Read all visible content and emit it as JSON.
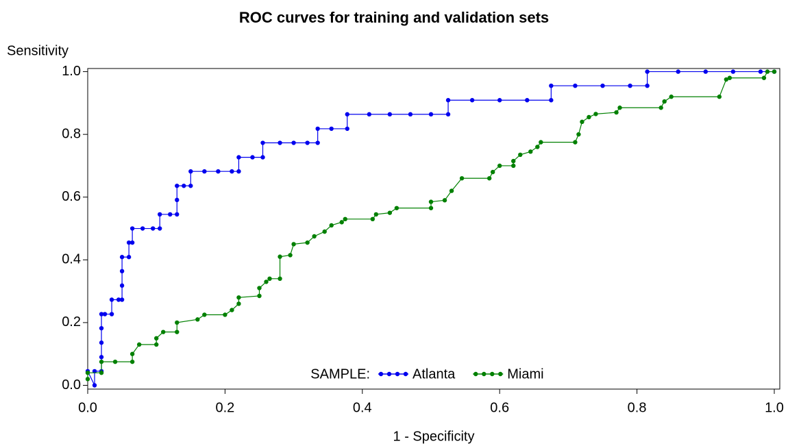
{
  "chart_data": {
    "type": "line",
    "title": "ROC curves for training and validation sets",
    "x_label": "1 - Specificity",
    "y_label": "Sensitivity",
    "legend_title": "SAMPLE:",
    "xlim": [
      0,
      1.008
    ],
    "ylim": [
      -0.012,
      1.01
    ],
    "xticks": [
      {
        "value": 0,
        "label": "0.0"
      },
      {
        "value": 0.2,
        "label": "0.2"
      },
      {
        "value": 0.4,
        "label": "0.4"
      },
      {
        "value": 0.6,
        "label": "0.6"
      },
      {
        "value": 0.8,
        "label": "0.8"
      },
      {
        "value": 1,
        "label": "1.0"
      }
    ],
    "yticks": [
      {
        "value": 0,
        "label": "0.0"
      },
      {
        "value": 0.2,
        "label": "0.2"
      },
      {
        "value": 0.4,
        "label": "0.4"
      },
      {
        "value": 0.6,
        "label": "0.6"
      },
      {
        "value": 0.8,
        "label": "0.8"
      },
      {
        "value": 1,
        "label": "1.0"
      }
    ],
    "series": [
      {
        "name": "Atlanta",
        "color": "#0000ee",
        "x": [
          0,
          0.01,
          0.01,
          0.02,
          0.02,
          0.02,
          0.02,
          0.02,
          0.025,
          0.035,
          0.035,
          0.045,
          0.05,
          0.05,
          0.05,
          0.05,
          0.06,
          0.06,
          0.065,
          0.065,
          0.08,
          0.095,
          0.105,
          0.105,
          0.12,
          0.13,
          0.13,
          0.13,
          0.14,
          0.15,
          0.15,
          0.17,
          0.19,
          0.21,
          0.22,
          0.22,
          0.24,
          0.255,
          0.255,
          0.28,
          0.3,
          0.32,
          0.335,
          0.335,
          0.355,
          0.378,
          0.378,
          0.41,
          0.44,
          0.47,
          0.5,
          0.525,
          0.525,
          0.56,
          0.6,
          0.64,
          0.675,
          0.675,
          0.71,
          0.75,
          0.79,
          0.815,
          0.815,
          0.86,
          0.9,
          0.94,
          0.98,
          1.0
        ],
        "values": [
          0.045,
          0.0,
          0.045,
          0.045,
          0.09,
          0.136,
          0.182,
          0.227,
          0.227,
          0.227,
          0.273,
          0.273,
          0.273,
          0.318,
          0.364,
          0.409,
          0.409,
          0.455,
          0.455,
          0.5,
          0.5,
          0.5,
          0.5,
          0.545,
          0.545,
          0.545,
          0.591,
          0.636,
          0.636,
          0.636,
          0.682,
          0.682,
          0.682,
          0.682,
          0.682,
          0.727,
          0.727,
          0.727,
          0.773,
          0.773,
          0.773,
          0.773,
          0.773,
          0.818,
          0.818,
          0.818,
          0.864,
          0.864,
          0.864,
          0.864,
          0.864,
          0.864,
          0.909,
          0.909,
          0.909,
          0.909,
          0.909,
          0.955,
          0.955,
          0.955,
          0.955,
          0.955,
          1.0,
          1.0,
          1.0,
          1.0,
          1.0,
          1.0
        ]
      },
      {
        "name": "Miami",
        "color": "#008000",
        "x": [
          0,
          0,
          0.02,
          0.02,
          0.04,
          0.065,
          0.065,
          0.075,
          0.1,
          0.1,
          0.11,
          0.13,
          0.13,
          0.16,
          0.17,
          0.2,
          0.21,
          0.22,
          0.22,
          0.25,
          0.25,
          0.26,
          0.265,
          0.28,
          0.28,
          0.295,
          0.3,
          0.32,
          0.33,
          0.345,
          0.355,
          0.37,
          0.375,
          0.415,
          0.42,
          0.44,
          0.45,
          0.5,
          0.5,
          0.52,
          0.53,
          0.545,
          0.585,
          0.59,
          0.6,
          0.62,
          0.62,
          0.63,
          0.645,
          0.655,
          0.66,
          0.71,
          0.715,
          0.72,
          0.73,
          0.74,
          0.77,
          0.775,
          0.835,
          0.84,
          0.85,
          0.92,
          0.93,
          0.935,
          0.985,
          0.99,
          1.0
        ],
        "values": [
          0.02,
          0.04,
          0.04,
          0.075,
          0.075,
          0.075,
          0.1,
          0.13,
          0.13,
          0.15,
          0.17,
          0.17,
          0.2,
          0.21,
          0.225,
          0.225,
          0.24,
          0.26,
          0.28,
          0.285,
          0.31,
          0.33,
          0.34,
          0.34,
          0.41,
          0.415,
          0.45,
          0.455,
          0.475,
          0.49,
          0.51,
          0.52,
          0.53,
          0.53,
          0.545,
          0.55,
          0.565,
          0.565,
          0.585,
          0.59,
          0.62,
          0.66,
          0.66,
          0.68,
          0.7,
          0.7,
          0.715,
          0.735,
          0.745,
          0.76,
          0.775,
          0.775,
          0.8,
          0.84,
          0.855,
          0.865,
          0.87,
          0.885,
          0.885,
          0.905,
          0.92,
          0.92,
          0.975,
          0.98,
          0.98,
          1.0,
          1.0
        ]
      }
    ]
  }
}
